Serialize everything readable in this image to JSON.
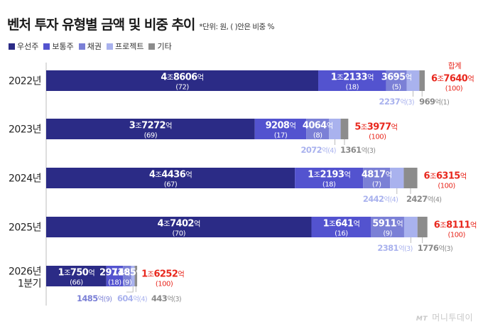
{
  "header": {
    "title": "벤처 투자 유형별 금액 및 비중 추이",
    "unit_note": "*단위: 원, ( )안은 비중 %"
  },
  "colors": {
    "우선주": "#2b2b86",
    "보통주": "#5353cf",
    "채권": "#7b80d6",
    "프로젝트": "#a9b2ee",
    "기타": "#8c8c8c",
    "total": "#e8281e"
  },
  "chart_data": {
    "type": "bar",
    "orientation": "horizontal",
    "stacked": true,
    "unit": "억원",
    "categories": [
      "2022년",
      "2023년",
      "2024년",
      "2025년",
      "2026년 1분기"
    ],
    "series": [
      {
        "name": "우선주",
        "values": [
          48606,
          37272,
          44436,
          47402,
          10750
        ],
        "labels": [
          "4조8606억",
          "3조7272억",
          "4조4436억",
          "4조7402억",
          "1조750억"
        ],
        "shares": [
          "(72)",
          "(69)",
          "(67)",
          "(70)",
          "(66)"
        ]
      },
      {
        "name": "보통주",
        "values": [
          12133,
          9208,
          12193,
          10641,
          2971
        ],
        "labels": [
          "1조2133억",
          "9208억",
          "1조2193억",
          "1조641억",
          "2971억"
        ],
        "shares": [
          "(18)",
          "(17)",
          "(18)",
          "(16)",
          "(18)"
        ]
      },
      {
        "name": "채권",
        "values": [
          3695,
          4064,
          4817,
          5911,
          1485
        ],
        "labels": [
          "3695억",
          "4064억",
          "4817억",
          "5911억",
          "1485억"
        ],
        "shares": [
          "(5)",
          "(8)",
          "(7)",
          "(9)",
          "(9)"
        ]
      },
      {
        "name": "프로젝트",
        "values": [
          2237,
          2072,
          2442,
          2381,
          604
        ],
        "labels": [
          "2237억",
          "2072억",
          "2442억",
          "2381억",
          "604억"
        ],
        "shares": [
          "(3)",
          "(4)",
          "(4)",
          "(3)",
          "(4)"
        ]
      },
      {
        "name": "기타",
        "values": [
          969,
          1361,
          2427,
          1776,
          443
        ],
        "labels": [
          "969억",
          "1361억",
          "2427억",
          "1776억",
          "443억"
        ],
        "shares": [
          "(1)",
          "(3)",
          "(4)",
          "(3)",
          "(3)"
        ]
      }
    ],
    "totals": {
      "label": "합계",
      "values": [
        67640,
        53977,
        66315,
        68111,
        16252
      ],
      "labels": [
        "6조7640억",
        "5조3977억",
        "6조6315억",
        "6조8111억",
        "1조6252억"
      ],
      "share": "(100)"
    },
    "legend": "top-left"
  },
  "watermark": {
    "mark": "MT",
    "text": "머니투데이"
  }
}
